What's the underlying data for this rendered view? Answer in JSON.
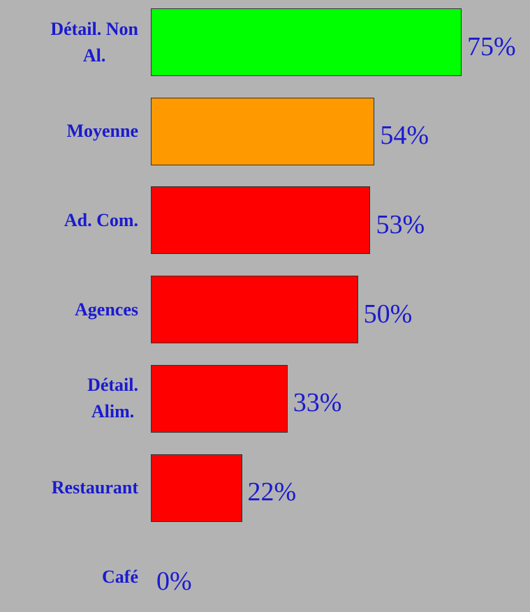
{
  "chart_data": {
    "type": "bar",
    "orientation": "horizontal",
    "categories": [
      "Détail. Non\nAl.",
      "Moyenne",
      "Ad. Com.",
      "Agences",
      "Détail.\nAlim.",
      "Restaurant",
      "Café"
    ],
    "values": [
      75,
      54,
      53,
      50,
      33,
      22,
      0
    ],
    "value_labels": [
      "75%",
      "54%",
      "53%",
      "50%",
      "33%",
      "22%",
      "0%"
    ],
    "colors": [
      "#00ff00",
      "#ff9900",
      "#ff0000",
      "#ff0000",
      "#ff0000",
      "#ff0000",
      "#ff0000"
    ]
  }
}
